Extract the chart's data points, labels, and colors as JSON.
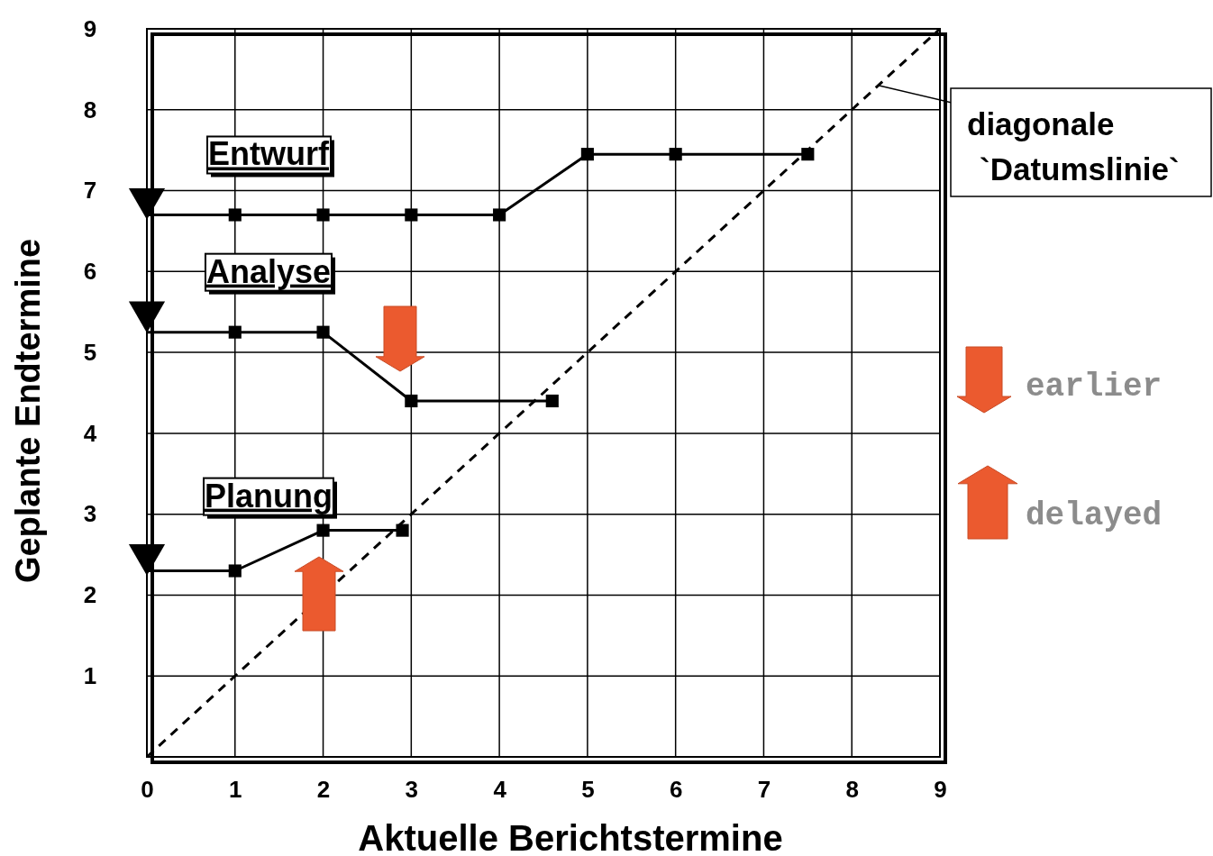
{
  "chart_data": {
    "type": "line",
    "xlabel": "Aktuelle Berichtstermine",
    "ylabel": "Geplante Endtermine",
    "xlim": [
      0,
      9
    ],
    "ylim": [
      0,
      9
    ],
    "xticks": [
      0,
      1,
      2,
      3,
      4,
      5,
      6,
      7,
      8,
      9
    ],
    "yticks": [
      1,
      2,
      3,
      4,
      5,
      6,
      7,
      8,
      9
    ],
    "grid": true,
    "marker": "none",
    "line_style": "solid",
    "series": [
      {
        "name": "Entwurf",
        "color": "#000000",
        "x": [
          0,
          1,
          2,
          3,
          4,
          5,
          6,
          7.5
        ],
        "values": [
          6.7,
          6.7,
          6.7,
          6.7,
          6.7,
          7.45,
          7.45,
          7.45
        ]
      },
      {
        "name": "Analyse",
        "color": "#000000",
        "x": [
          0,
          1,
          2,
          3,
          4.6
        ],
        "values": [
          5.25,
          5.25,
          5.25,
          4.4,
          4.4
        ]
      },
      {
        "name": "Planung",
        "color": "#000000",
        "x": [
          0,
          1,
          2,
          2.9
        ],
        "values": [
          2.3,
          2.3,
          2.8,
          2.8
        ]
      },
      {
        "type": "scatter",
        "marker": "square",
        "color": "#000000",
        "x": [
          1,
          2,
          3,
          4,
          5,
          6,
          7.5,
          1,
          2,
          3,
          4.6,
          1,
          2,
          2.9
        ],
        "values": [
          6.7,
          6.7,
          6.7,
          6.7,
          7.45,
          7.45,
          7.45,
          5.25,
          5.25,
          4.4,
          4.4,
          2.3,
          2.8,
          2.8
        ]
      },
      {
        "type": "scatter",
        "marker": "triangle",
        "color": "#000000",
        "x": [
          0,
          0,
          0
        ],
        "values": [
          6.9,
          5.5,
          2.5
        ]
      },
      {
        "type": "line",
        "line_style": "dashed",
        "color": "#000000",
        "x": [
          0,
          9
        ],
        "values": [
          0,
          9
        ]
      }
    ],
    "annotations": [
      {
        "text": "diagonale\n`Datumslinie`",
        "x": 8.3,
        "y": 8.3
      },
      "earlier",
      "delayed"
    ]
  }
}
